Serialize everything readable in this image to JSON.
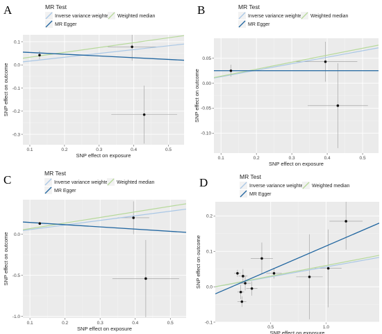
{
  "colors": {
    "panel_bg": "#ebebeb",
    "grid_major": "#ffffff",
    "ivw": "#a9c7e6",
    "egger": "#2166a0",
    "wmedian": "#b6d99a",
    "point": "#111111",
    "errorbar": "#9a9a9a"
  },
  "legend": {
    "title": "MR Test",
    "items": [
      {
        "key": "ivw",
        "label": "Inverse variance weighted"
      },
      {
        "key": "wmedian",
        "label": "Weighted median"
      },
      {
        "key": "egger",
        "label": "MR Egger"
      }
    ]
  },
  "chart_data": [
    {
      "panel": "A",
      "type": "scatter",
      "xlabel": "SNP effect on exposure",
      "ylabel": "SNP effect on outcome",
      "xlim": [
        0.08,
        0.545
      ],
      "ylim": [
        -0.345,
        0.13
      ],
      "xticks": [
        0.1,
        0.2,
        0.3,
        0.4,
        0.5
      ],
      "xtick_labels": [
        "0.1",
        "0.2",
        "0.3",
        "0.4",
        "0.5"
      ],
      "yticks": [
        -0.3,
        -0.2,
        -0.1,
        0.0,
        0.1
      ],
      "ytick_labels": [
        "-0.3",
        "-0.2",
        "-0.1",
        "0.0",
        "0.1"
      ],
      "points": [
        {
          "x": 0.128,
          "y": 0.042,
          "x_err": 0.0,
          "y_err": 0.018
        },
        {
          "x": 0.395,
          "y": 0.078,
          "x_err": 0.07,
          "y_err": 0.06
        },
        {
          "x": 0.43,
          "y": -0.215,
          "x_err": 0.095,
          "y_err": 0.125
        }
      ],
      "lines": [
        {
          "method": "ivw",
          "intercept": 0.0,
          "slope": 0.165
        },
        {
          "method": "wmedian",
          "intercept": 0.012,
          "slope": 0.21
        },
        {
          "method": "egger",
          "intercept": 0.061,
          "slope": -0.075
        }
      ]
    },
    {
      "panel": "B",
      "type": "scatter",
      "xlabel": "SNP effect on exposure",
      "ylabel": "SNP effect on outcome",
      "xlim": [
        0.08,
        0.545
      ],
      "ylim": [
        -0.14,
        0.09
      ],
      "xticks": [
        0.1,
        0.2,
        0.3,
        0.4,
        0.5
      ],
      "xtick_labels": [
        "0.1",
        "0.2",
        "0.3",
        "0.4",
        "0.5"
      ],
      "yticks": [
        -0.1,
        -0.05,
        0.0,
        0.05
      ],
      "ytick_labels": [
        "-0.10",
        "-0.05",
        "0.00",
        "0.05"
      ],
      "points": [
        {
          "x": 0.128,
          "y": 0.025,
          "x_err": 0.0,
          "y_err": 0.012
        },
        {
          "x": 0.395,
          "y": 0.043,
          "x_err": 0.09,
          "y_err": 0.04
        },
        {
          "x": 0.43,
          "y": -0.045,
          "x_err": 0.085,
          "y_err": 0.085
        }
      ],
      "lines": [
        {
          "method": "ivw",
          "intercept": 0.0,
          "slope": 0.13
        },
        {
          "method": "wmedian",
          "intercept": 0.0,
          "slope": 0.14
        },
        {
          "method": "egger",
          "intercept": 0.025,
          "slope": 0.0
        }
      ]
    },
    {
      "panel": "C",
      "type": "scatter",
      "xlabel": "SNP effect on exposure",
      "ylabel": "SNP effect on outcome",
      "xlim": [
        0.08,
        0.545
      ],
      "ylim": [
        -1.02,
        0.42
      ],
      "xticks": [
        0.1,
        0.2,
        0.3,
        0.4,
        0.5
      ],
      "xtick_labels": [
        "0.1",
        "0.2",
        "0.3",
        "0.4",
        "0.5"
      ],
      "yticks": [
        -1.0,
        -0.5,
        0.0
      ],
      "ytick_labels": [
        "-1.0",
        "-0.5",
        "0.0"
      ],
      "points": [
        {
          "x": 0.128,
          "y": 0.13,
          "x_err": 0.0,
          "y_err": 0.02
        },
        {
          "x": 0.395,
          "y": 0.2,
          "x_err": 0.045,
          "y_err": 0.2
        },
        {
          "x": 0.43,
          "y": -0.54,
          "x_err": 0.095,
          "y_err": 0.47
        }
      ],
      "lines": [
        {
          "method": "ivw",
          "intercept": 0.0,
          "slope": 0.56
        },
        {
          "method": "wmedian",
          "intercept": 0.0,
          "slope": 0.68
        },
        {
          "method": "egger",
          "intercept": 0.17,
          "slope": -0.27
        }
      ]
    },
    {
      "panel": "D",
      "type": "scatter",
      "xlabel": "SNP effect on exposure",
      "ylabel": "SNP effect on outcome",
      "xlim": [
        0.0,
        1.48
      ],
      "ylim": [
        -0.1,
        0.24
      ],
      "xticks": [
        0.5,
        1.0
      ],
      "xtick_labels": [
        "0.5",
        "1.0"
      ],
      "yticks": [
        -0.1,
        0.0,
        0.1,
        0.2
      ],
      "ytick_labels": [
        "-0.1",
        "0.0",
        "0.1",
        "0.2"
      ],
      "points": [
        {
          "x": 0.2,
          "y": 0.038,
          "x_err": 0.03,
          "y_err": 0.01
        },
        {
          "x": 0.23,
          "y": -0.015,
          "x_err": 0.03,
          "y_err": 0.02
        },
        {
          "x": 0.24,
          "y": -0.042,
          "x_err": 0.04,
          "y_err": 0.015
        },
        {
          "x": 0.25,
          "y": 0.03,
          "x_err": 0.04,
          "y_err": 0.02
        },
        {
          "x": 0.27,
          "y": 0.01,
          "x_err": 0.05,
          "y_err": 0.02
        },
        {
          "x": 0.33,
          "y": -0.005,
          "x_err": 0.05,
          "y_err": 0.02
        },
        {
          "x": 0.42,
          "y": 0.08,
          "x_err": 0.1,
          "y_err": 0.045
        },
        {
          "x": 0.53,
          "y": 0.038,
          "x_err": 0.07,
          "y_err": 0.015
        },
        {
          "x": 0.85,
          "y": 0.028,
          "x_err": 0.12,
          "y_err": 0.12
        },
        {
          "x": 1.02,
          "y": 0.052,
          "x_err": 0.12,
          "y_err": 0.11
        },
        {
          "x": 1.18,
          "y": 0.185,
          "x_err": 0.15,
          "y_err": 0.08
        }
      ],
      "lines": [
        {
          "method": "ivw",
          "intercept": 0.0,
          "slope": 0.056
        },
        {
          "method": "wmedian",
          "intercept": 0.0,
          "slope": 0.06
        },
        {
          "method": "egger",
          "intercept": -0.02,
          "slope": 0.135
        }
      ]
    }
  ]
}
